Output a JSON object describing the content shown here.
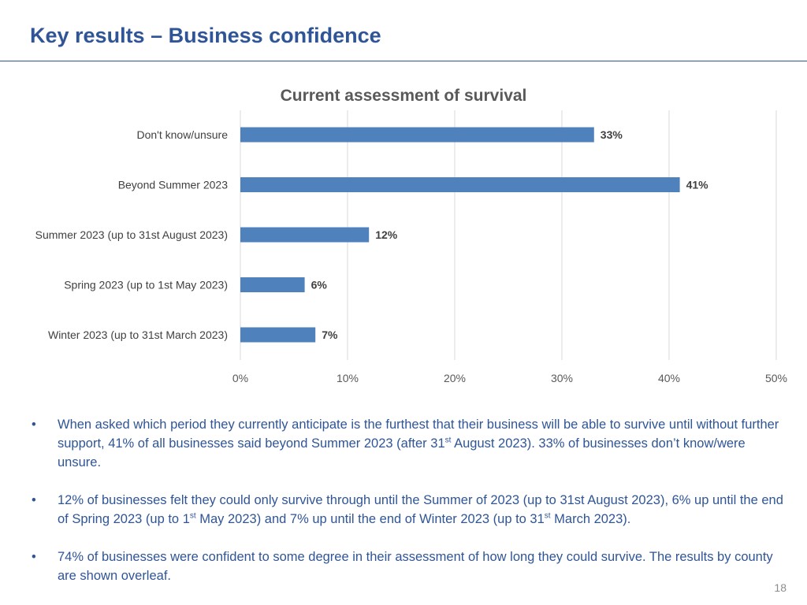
{
  "slide": {
    "title": "Key results – Business confidence",
    "page_number": "18"
  },
  "chart_data": {
    "type": "bar",
    "orientation": "horizontal",
    "title": "Current assessment of survival",
    "categories": [
      "Don't know/unsure",
      "Beyond Summer 2023",
      "Summer 2023 (up to 31st August 2023)",
      "Spring 2023 (up to 1st May 2023)",
      "Winter 2023 (up to 31st March 2023)"
    ],
    "values": [
      33,
      41,
      12,
      6,
      7
    ],
    "value_labels": [
      "33%",
      "41%",
      "12%",
      "6%",
      "7%"
    ],
    "xlim": [
      0,
      50
    ],
    "x_ticks": [
      "0%",
      "10%",
      "20%",
      "30%",
      "40%",
      "50%"
    ],
    "xlabel": "",
    "ylabel": "",
    "grid": true,
    "legend": "none",
    "bar_color": "#4f81bd"
  },
  "bullets": [
    {
      "parts": [
        "When asked which period they currently anticipate is the furthest that their business will be able to survive until without further support, 41% of all businesses said beyond Summer 2023 (after 31",
        "st",
        " August 2023).  33% of businesses don’t know/were unsure."
      ]
    },
    {
      "parts": [
        "12% of businesses felt they could only survive through until the Summer of 2023 (up to 31st August 2023), 6% up until the end of Spring 2023 (up to 1",
        "st",
        " May 2023) and 7% up until the end of Winter 2023 (up to 31",
        "st",
        " March 2023)."
      ]
    },
    {
      "parts": [
        "74% of businesses were confident to some degree in their assessment of how long they could survive.  The results by county are shown overleaf."
      ]
    }
  ]
}
